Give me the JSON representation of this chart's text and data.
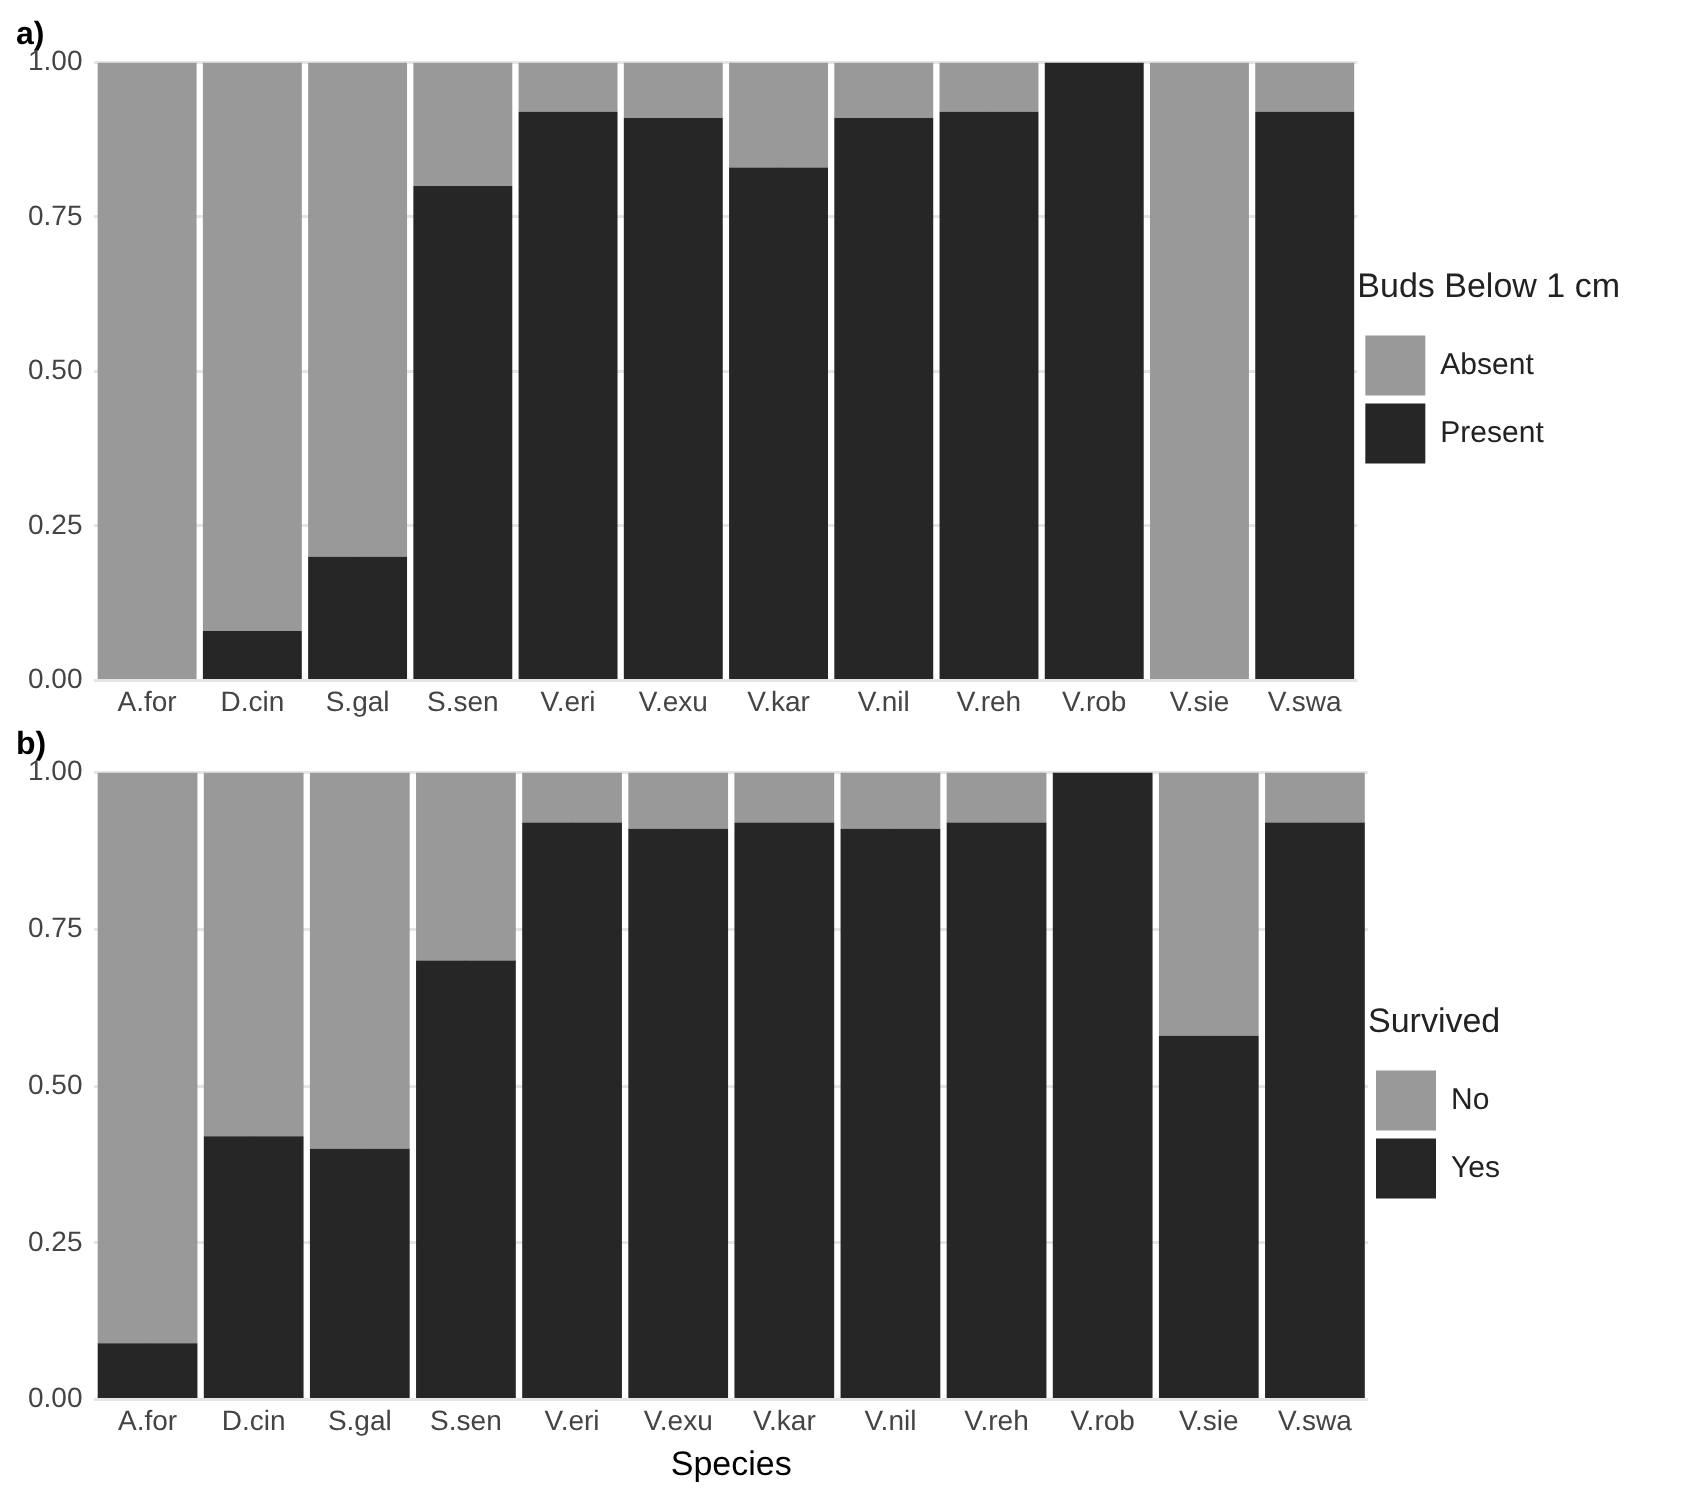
{
  "chart_data": [
    {
      "type": "bar",
      "title": "a)",
      "legend_title": "Buds Below 1 cm",
      "categories": [
        "A.for",
        "D.cin",
        "S.gal",
        "S.sen",
        "V.eri",
        "V.exu",
        "V.kar",
        "V.nil",
        "V.reh",
        "V.rob",
        "V.sie",
        "V.swa"
      ],
      "series": [
        {
          "name": "Present",
          "color": "#262626",
          "values": [
            0,
            0.08,
            0.2,
            0.8,
            0.92,
            0.91,
            0.83,
            0.91,
            0.92,
            1,
            0,
            0.92
          ]
        },
        {
          "name": "Absent",
          "color": "#999999",
          "values": [
            1,
            0.92,
            0.8,
            0.2,
            0.08,
            0.09,
            0.17,
            0.09,
            0.08,
            0,
            1,
            0.08
          ]
        }
      ],
      "stacked": true,
      "ylim": [
        0,
        1
      ],
      "yticks": [
        {
          "value": 0,
          "label": "0.00"
        },
        {
          "value": 0.25,
          "label": "0.25"
        },
        {
          "value": 0.5,
          "label": "0.50"
        },
        {
          "value": 0.75,
          "label": "0.75"
        },
        {
          "value": 1,
          "label": "1.00"
        }
      ],
      "grid": true,
      "legend": "right"
    },
    {
      "type": "bar",
      "title": "b)",
      "legend_title": "Survived",
      "xlabel": "Species",
      "categories": [
        "A.for",
        "D.cin",
        "S.gal",
        "S.sen",
        "V.eri",
        "V.exu",
        "V.kar",
        "V.nil",
        "V.reh",
        "V.rob",
        "V.sie",
        "V.swa"
      ],
      "series": [
        {
          "name": "Yes",
          "color": "#262626",
          "values": [
            0.09,
            0.42,
            0.4,
            0.7,
            0.92,
            0.91,
            0.92,
            0.91,
            0.92,
            1,
            0.58,
            0.92
          ]
        },
        {
          "name": "No",
          "color": "#999999",
          "values": [
            0.91,
            0.58,
            0.6,
            0.3,
            0.08,
            0.09,
            0.08,
            0.09,
            0.08,
            0,
            0.42,
            0.08
          ]
        }
      ],
      "stacked": true,
      "ylim": [
        0,
        1
      ],
      "yticks": [
        {
          "value": 0,
          "label": "0.00"
        },
        {
          "value": 0.25,
          "label": "0.25"
        },
        {
          "value": 0.5,
          "label": "0.50"
        },
        {
          "value": 0.75,
          "label": "0.75"
        },
        {
          "value": 1,
          "label": "1.00"
        }
      ],
      "grid": true,
      "legend": "right"
    }
  ]
}
